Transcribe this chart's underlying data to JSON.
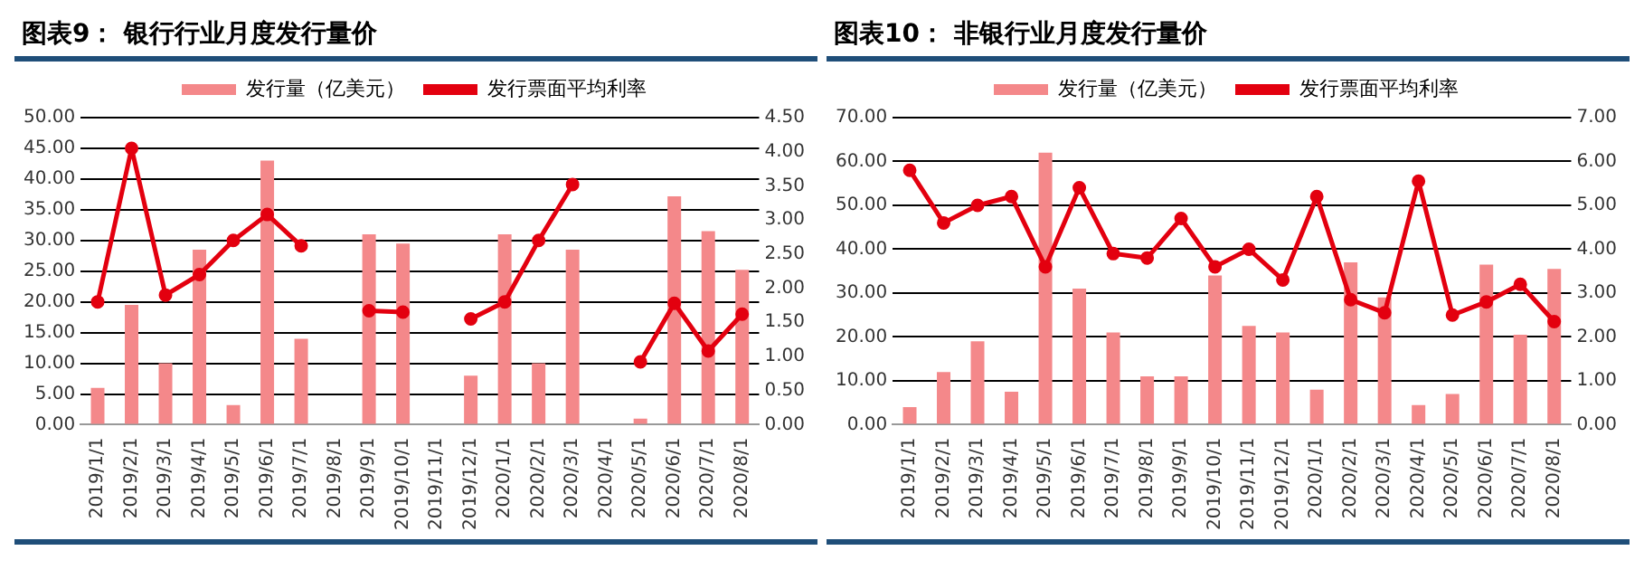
{
  "chart_data": [
    {
      "type": "bar",
      "title": "图表9： 银行行业月度发行量价",
      "categories": [
        "2019/1/1",
        "2019/2/1",
        "2019/3/1",
        "2019/4/1",
        "2019/5/1",
        "2019/6/1",
        "2019/7/1",
        "2019/8/1",
        "2019/9/1",
        "2019/10/1",
        "2019/11/1",
        "2019/12/1",
        "2020/1/1",
        "2020/2/1",
        "2020/3/1",
        "2020/4/1",
        "2020/5/1",
        "2020/6/1",
        "2020/7/1",
        "2020/8/1"
      ],
      "series": [
        {
          "name": "发行量（亿美元）",
          "color": "#f4888a",
          "values": [
            6,
            19.5,
            10,
            28.5,
            3.2,
            43,
            14,
            null,
            31,
            29.5,
            null,
            8,
            31,
            10,
            28.5,
            null,
            1,
            37.2,
            31.5,
            25.2
          ]
        },
        {
          "name": "发行票面平均利率",
          "type": "line",
          "axis": "y2",
          "color": "#e3000f",
          "values": [
            1.8,
            4.05,
            1.9,
            2.2,
            2.7,
            3.08,
            2.62,
            null,
            1.67,
            1.65,
            null,
            1.55,
            1.8,
            2.7,
            3.52,
            null,
            0.92,
            1.78,
            1.08,
            1.62
          ]
        }
      ],
      "ylim": [
        0,
        50
      ],
      "yticks": [
        {
          "value": 0,
          "label": "0.00"
        },
        {
          "value": 5,
          "label": "5.00"
        },
        {
          "value": 10,
          "label": "10.00"
        },
        {
          "value": 15,
          "label": "15.00"
        },
        {
          "value": 20,
          "label": "20.00"
        },
        {
          "value": 25,
          "label": "25.00"
        },
        {
          "value": 30,
          "label": "30.00"
        },
        {
          "value": 35,
          "label": "35.00"
        },
        {
          "value": 40,
          "label": "40.00"
        },
        {
          "value": 45,
          "label": "45.00"
        },
        {
          "value": 50,
          "label": "50.00"
        }
      ],
      "y2lim": [
        0,
        4.5
      ],
      "y2ticks": [
        {
          "value": 0,
          "label": "0.00"
        },
        {
          "value": 0.5,
          "label": "0.50"
        },
        {
          "value": 1,
          "label": "1.00"
        },
        {
          "value": 1.5,
          "label": "1.50"
        },
        {
          "value": 2,
          "label": "2.00"
        },
        {
          "value": 2.5,
          "label": "2.50"
        },
        {
          "value": 3,
          "label": "3.00"
        },
        {
          "value": 3.5,
          "label": "3.50"
        },
        {
          "value": 4,
          "label": "4.00"
        },
        {
          "value": 4.5,
          "label": "4.50"
        }
      ],
      "grid": "y",
      "legend": "top",
      "marker": "circle"
    },
    {
      "type": "bar",
      "title": "图表10： 非银行业月度发行量价",
      "categories": [
        "2019/1/1",
        "2019/2/1",
        "2019/3/1",
        "2019/4/1",
        "2019/5/1",
        "2019/6/1",
        "2019/7/1",
        "2019/8/1",
        "2019/9/1",
        "2019/10/1",
        "2019/11/1",
        "2019/12/1",
        "2020/1/1",
        "2020/2/1",
        "2020/3/1",
        "2020/4/1",
        "2020/5/1",
        "2020/6/1",
        "2020/7/1",
        "2020/8/1"
      ],
      "series": [
        {
          "name": "发行量（亿美元）",
          "color": "#f4888a",
          "values": [
            4,
            12,
            19,
            7.5,
            62,
            31,
            21,
            11,
            11,
            34,
            22.5,
            21,
            8,
            37,
            29,
            4.5,
            7,
            36.5,
            20.5,
            35.5
          ]
        },
        {
          "name": "发行票面平均利率",
          "type": "line",
          "axis": "y2",
          "color": "#e3000f",
          "values": [
            5.8,
            4.6,
            5.0,
            5.2,
            3.6,
            5.4,
            3.9,
            3.8,
            4.7,
            3.6,
            4.0,
            3.3,
            5.2,
            2.85,
            2.55,
            5.55,
            2.5,
            2.8,
            3.2,
            2.35
          ]
        }
      ],
      "ylim": [
        0,
        70
      ],
      "yticks": [
        {
          "value": 0,
          "label": "0.00"
        },
        {
          "value": 10,
          "label": "10.00"
        },
        {
          "value": 20,
          "label": "20.00"
        },
        {
          "value": 30,
          "label": "30.00"
        },
        {
          "value": 40,
          "label": "40.00"
        },
        {
          "value": 50,
          "label": "50.00"
        },
        {
          "value": 60,
          "label": "60.00"
        },
        {
          "value": 70,
          "label": "70.00"
        }
      ],
      "y2lim": [
        0,
        7
      ],
      "y2ticks": [
        {
          "value": 0,
          "label": "0.00"
        },
        {
          "value": 1,
          "label": "1.00"
        },
        {
          "value": 2,
          "label": "2.00"
        },
        {
          "value": 3,
          "label": "3.00"
        },
        {
          "value": 4,
          "label": "4.00"
        },
        {
          "value": 5,
          "label": "5.00"
        },
        {
          "value": 6,
          "label": "6.00"
        },
        {
          "value": 7,
          "label": "7.00"
        }
      ],
      "grid": "y",
      "legend": "top",
      "marker": "circle"
    }
  ]
}
